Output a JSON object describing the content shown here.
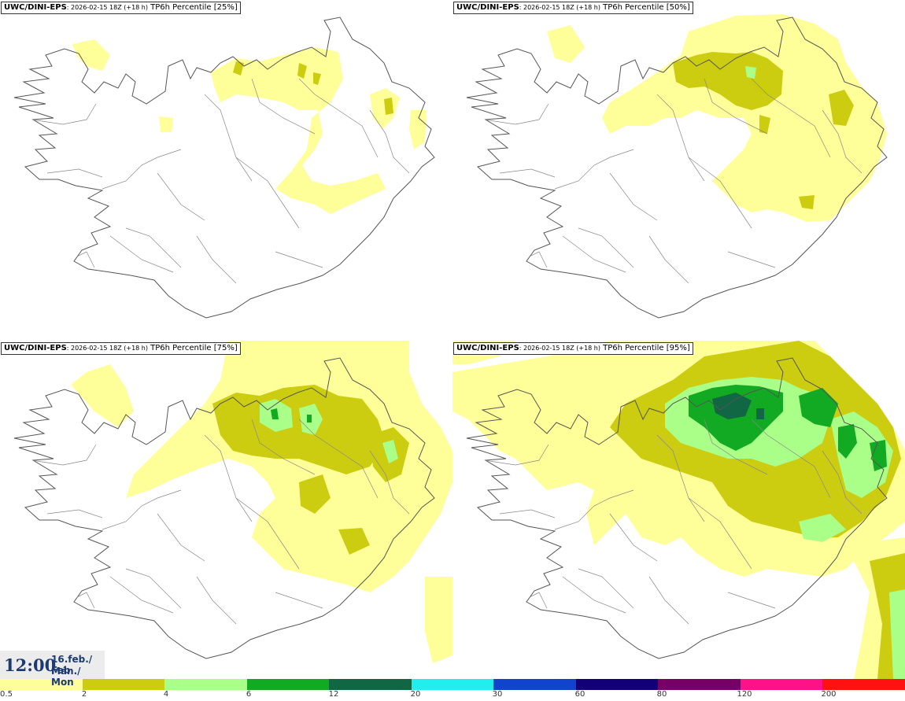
{
  "panels": [
    {
      "model": "UWC/DINI-EPS",
      "run": ": 2026-02-15 18Z (+18 h)",
      "field": " TP6h Percentile [25%]",
      "percentile": 25
    },
    {
      "model": "UWC/DINI-EPS",
      "run": ": 2026-02-15 18Z (+18 h)",
      "field": " TP6h Percentile [50%]",
      "percentile": 50
    },
    {
      "model": "UWC/DINI-EPS",
      "run": ": 2026-02-15 18Z (+18 h)",
      "field": " TP6h Percentile [75%]",
      "percentile": 75
    },
    {
      "model": "UWC/DINI-EPS",
      "run": ": 2026-02-15 18Z (+18 h)",
      "field": " TP6h Percentile [95%]",
      "percentile": 95
    }
  ],
  "time": {
    "clock": "12:00",
    "date_line1": "16.feb./ Feb",
    "date_line2": "Mán./ Mon"
  },
  "legend": {
    "colors": [
      "#ffff99",
      "#cccc11",
      "#aaff88",
      "#11aa22",
      "#116644",
      "#22eeee",
      "#1144cc",
      "#110077",
      "#770066",
      "#ff1188",
      "#ff1111"
    ],
    "labels": [
      "0.5",
      "2",
      "4",
      "6",
      "12",
      "20",
      "30",
      "60",
      "80",
      "120",
      "200"
    ]
  },
  "colors": {
    "map_outline": "#555555",
    "title_text": "#1d3b70"
  }
}
